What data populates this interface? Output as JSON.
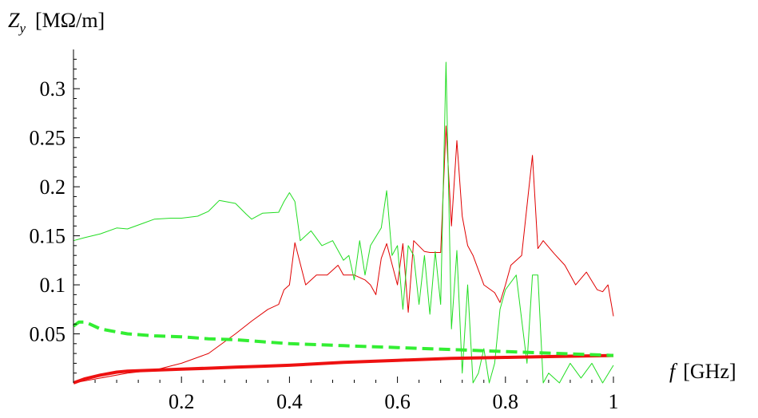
{
  "chart_data": {
    "type": "line",
    "ylabel_symbol": "Z",
    "ylabel_subscript": "y",
    "ylabel_unit": "[MΩ/m]",
    "xlabel_symbol": "f",
    "xlabel_unit": "[GHz]",
    "xlim": [
      0.0,
      1.0
    ],
    "ylim": [
      0.0,
      0.34
    ],
    "grid": false,
    "x_ticks": [
      0.2,
      0.4,
      0.6,
      0.8,
      1.0
    ],
    "x_tick_labels": [
      "0.2",
      "0.4",
      "0.6",
      "0.8",
      "1"
    ],
    "y_ticks": [
      0.05,
      0.1,
      0.15,
      0.2,
      0.25,
      0.3
    ],
    "y_tick_labels": [
      "0.05",
      "0.1",
      "0.15",
      "0.2",
      "0.25",
      "0.3"
    ],
    "series": [
      {
        "color": "#e00000",
        "width": 1,
        "style": "solid",
        "x": [
          0.0,
          0.05,
          0.1,
          0.15,
          0.2,
          0.25,
          0.3,
          0.33,
          0.36,
          0.38,
          0.39,
          0.4,
          0.41,
          0.43,
          0.45,
          0.47,
          0.49,
          0.5,
          0.52,
          0.54,
          0.55,
          0.56,
          0.57,
          0.58,
          0.6,
          0.61,
          0.62,
          0.63,
          0.65,
          0.66,
          0.68,
          0.69,
          0.7,
          0.71,
          0.72,
          0.73,
          0.74,
          0.76,
          0.78,
          0.79,
          0.8,
          0.81,
          0.83,
          0.85,
          0.86,
          0.87,
          0.89,
          0.91,
          0.93,
          0.95,
          0.97,
          0.98,
          0.99,
          1.0
        ],
        "y": [
          0.0,
          0.005,
          0.01,
          0.013,
          0.02,
          0.03,
          0.05,
          0.063,
          0.075,
          0.08,
          0.095,
          0.1,
          0.143,
          0.1,
          0.11,
          0.11,
          0.12,
          0.11,
          0.11,
          0.105,
          0.1,
          0.09,
          0.127,
          0.142,
          0.1,
          0.142,
          0.072,
          0.145,
          0.134,
          0.133,
          0.133,
          0.262,
          0.16,
          0.247,
          0.17,
          0.14,
          0.13,
          0.1,
          0.092,
          0.082,
          0.1,
          0.12,
          0.13,
          0.232,
          0.137,
          0.145,
          0.132,
          0.12,
          0.1,
          0.113,
          0.095,
          0.093,
          0.1,
          0.068
        ]
      },
      {
        "color": "#22dd22",
        "width": 1,
        "style": "solid",
        "x": [
          0.0,
          0.02,
          0.05,
          0.08,
          0.1,
          0.13,
          0.15,
          0.18,
          0.2,
          0.23,
          0.25,
          0.27,
          0.3,
          0.32,
          0.33,
          0.35,
          0.38,
          0.39,
          0.4,
          0.41,
          0.42,
          0.44,
          0.46,
          0.48,
          0.5,
          0.51,
          0.52,
          0.53,
          0.54,
          0.55,
          0.57,
          0.58,
          0.59,
          0.6,
          0.61,
          0.62,
          0.63,
          0.64,
          0.65,
          0.66,
          0.67,
          0.68,
          0.69,
          0.7,
          0.71,
          0.72,
          0.73,
          0.74,
          0.75,
          0.76,
          0.77,
          0.78,
          0.79,
          0.8,
          0.82,
          0.84,
          0.85,
          0.86,
          0.87,
          0.88,
          0.9,
          0.92,
          0.94,
          0.96,
          0.98,
          1.0
        ],
        "y": [
          0.145,
          0.148,
          0.152,
          0.158,
          0.157,
          0.163,
          0.167,
          0.168,
          0.168,
          0.17,
          0.175,
          0.186,
          0.183,
          0.172,
          0.167,
          0.173,
          0.174,
          0.185,
          0.194,
          0.185,
          0.145,
          0.155,
          0.14,
          0.145,
          0.125,
          0.13,
          0.105,
          0.145,
          0.11,
          0.14,
          0.158,
          0.196,
          0.13,
          0.14,
          0.075,
          0.14,
          0.13,
          0.08,
          0.13,
          0.07,
          0.134,
          0.08,
          0.327,
          0.055,
          0.135,
          0.01,
          0.1,
          0.0,
          0.01,
          0.035,
          0.0,
          0.02,
          0.075,
          0.095,
          0.11,
          0.02,
          0.11,
          0.11,
          0.0,
          0.01,
          0.0,
          0.02,
          0.005,
          0.02,
          0.0,
          0.018
        ]
      },
      {
        "color": "#ee1111",
        "width": 4,
        "style": "solid",
        "x": [
          0.0,
          0.02,
          0.05,
          0.08,
          0.1,
          0.15,
          0.2,
          0.25,
          0.3,
          0.35,
          0.4,
          0.5,
          0.6,
          0.7,
          0.8,
          0.9,
          1.0
        ],
        "y": [
          0.0,
          0.004,
          0.008,
          0.011,
          0.012,
          0.013,
          0.014,
          0.015,
          0.016,
          0.017,
          0.018,
          0.021,
          0.023,
          0.025,
          0.026,
          0.027,
          0.028
        ]
      },
      {
        "color": "#33ee33",
        "width": 4,
        "style": "dashed",
        "x": [
          0.0,
          0.01,
          0.02,
          0.03,
          0.05,
          0.08,
          0.1,
          0.15,
          0.2,
          0.25,
          0.3,
          0.35,
          0.4,
          0.5,
          0.6,
          0.7,
          0.8,
          0.9,
          1.0
        ],
        "y": [
          0.058,
          0.062,
          0.062,
          0.06,
          0.055,
          0.052,
          0.05,
          0.048,
          0.047,
          0.045,
          0.044,
          0.042,
          0.04,
          0.038,
          0.036,
          0.034,
          0.032,
          0.03,
          0.028
        ]
      }
    ]
  }
}
